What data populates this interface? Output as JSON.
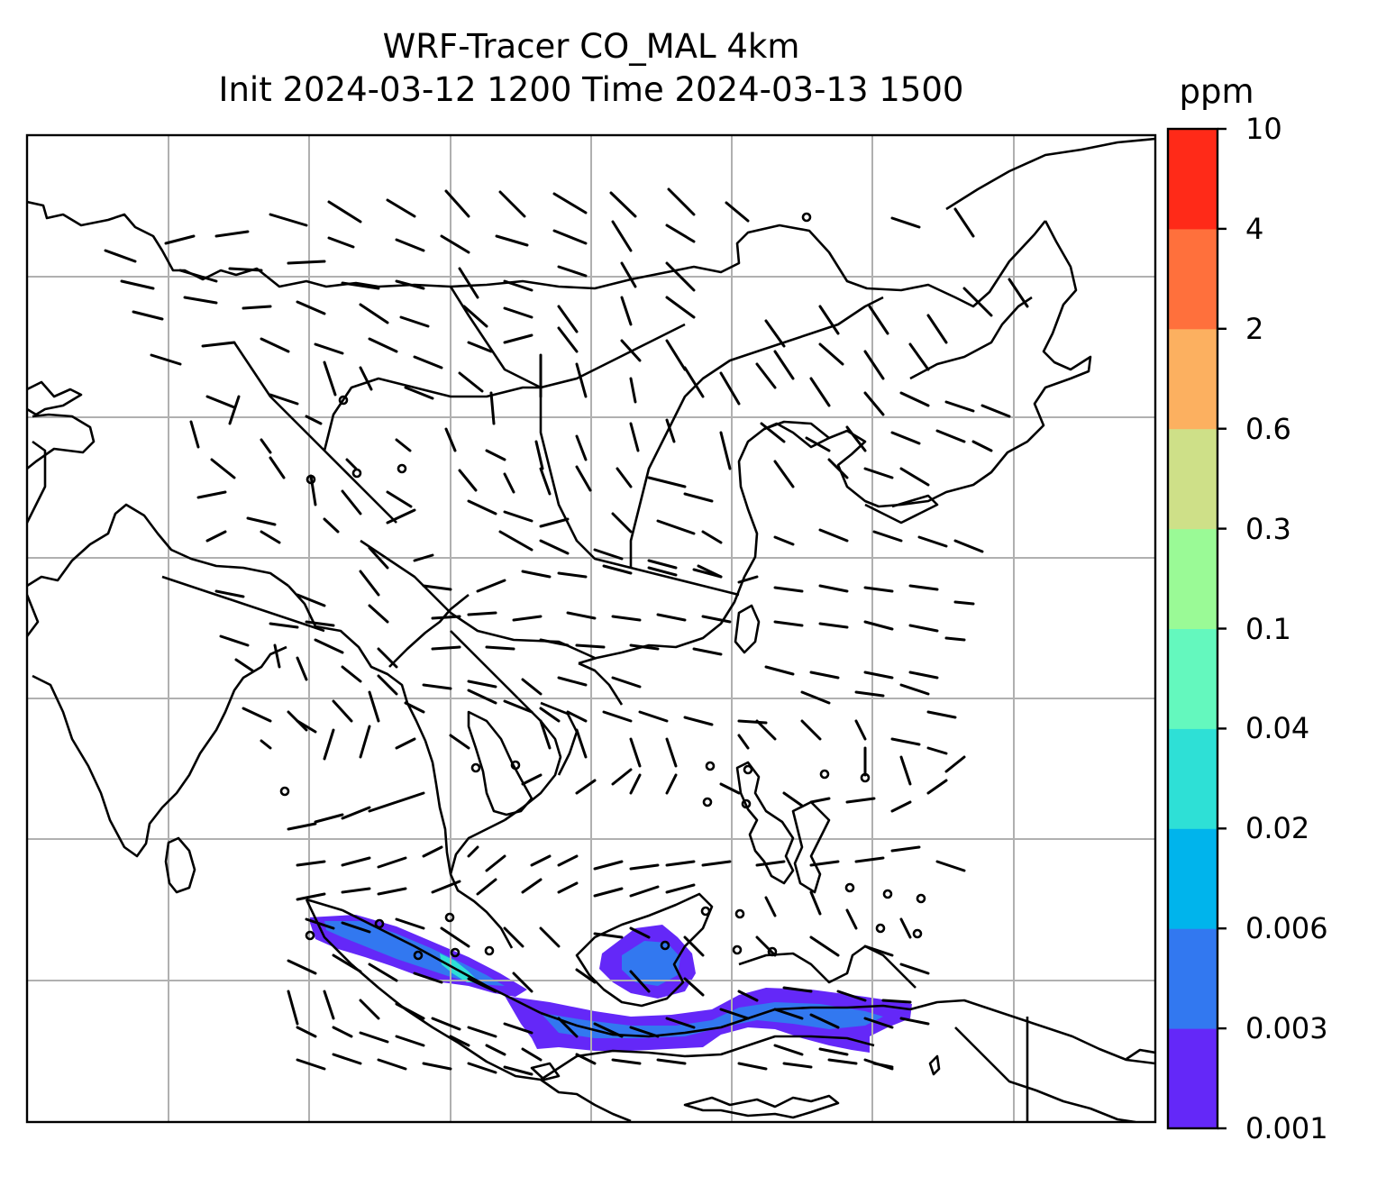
{
  "title": {
    "line1": "WRF-Tracer CO_MAL 4km",
    "line2": "Init 2024-03-12 1200 Time 2024-03-13 1500"
  },
  "colorbar": {
    "unit": "ppm",
    "levels": [
      "0.001",
      "0.003",
      "0.006",
      "0.02",
      "0.04",
      "0.1",
      "0.3",
      "0.6",
      "2",
      "4",
      "10"
    ],
    "colors": [
      "#6428f8",
      "#3278f0",
      "#00b4ec",
      "#2ee0d6",
      "#64f8be",
      "#9afa96",
      "#cee088",
      "#fcb060",
      "#ff703c",
      "#ff2a18"
    ]
  },
  "map": {
    "type": "contour-fill with wind barbs",
    "gridlines": true,
    "tracer": "CO_MAL"
  }
}
